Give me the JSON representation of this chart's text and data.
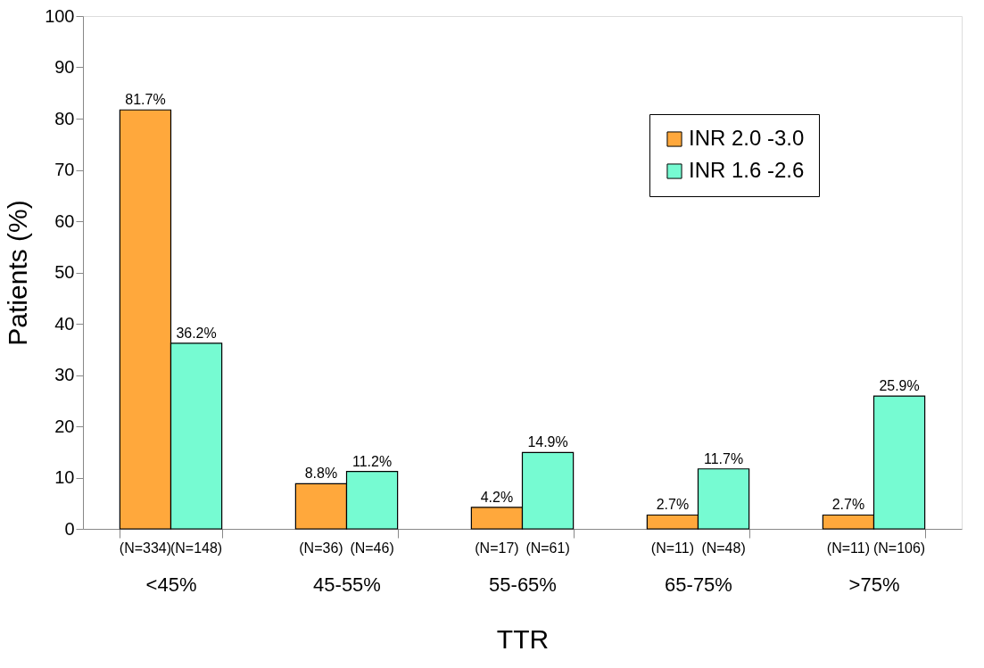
{
  "chart_data": {
    "type": "bar",
    "xlabel": "TTR",
    "ylabel": "Patients (%)",
    "categories": [
      "<45%",
      "45-55%",
      "55-65%",
      "65-75%",
      ">75%"
    ],
    "series": [
      {
        "name": "INR 2.0 -3.0",
        "color": "#ffa83c",
        "values": [
          81.7,
          8.8,
          4.2,
          2.7,
          2.7
        ],
        "value_labels": [
          "81.7%",
          "8.8%",
          "4.2%",
          "2.7%",
          "2.7%"
        ]
      },
      {
        "name": "INR 1.6 -2.6",
        "color": "#76fbd2",
        "values": [
          36.2,
          11.2,
          14.9,
          11.7,
          25.9
        ],
        "value_labels": [
          "36.2%",
          "11.2%",
          "14.9%",
          "11.7%",
          "25.9%"
        ]
      }
    ],
    "annotations": [
      "(N=334)",
      "(N=148)",
      "(N=36)",
      "(N=46)",
      "(N=17)",
      "(N=61)",
      "(N=11)",
      "(N=48)",
      "(N=11)",
      "(N=106)"
    ],
    "ylim": [
      0,
      100
    ],
    "yticks": [
      0,
      10,
      20,
      30,
      40,
      50,
      60,
      70,
      80,
      90,
      100
    ],
    "grid": false,
    "legend": "top right"
  }
}
